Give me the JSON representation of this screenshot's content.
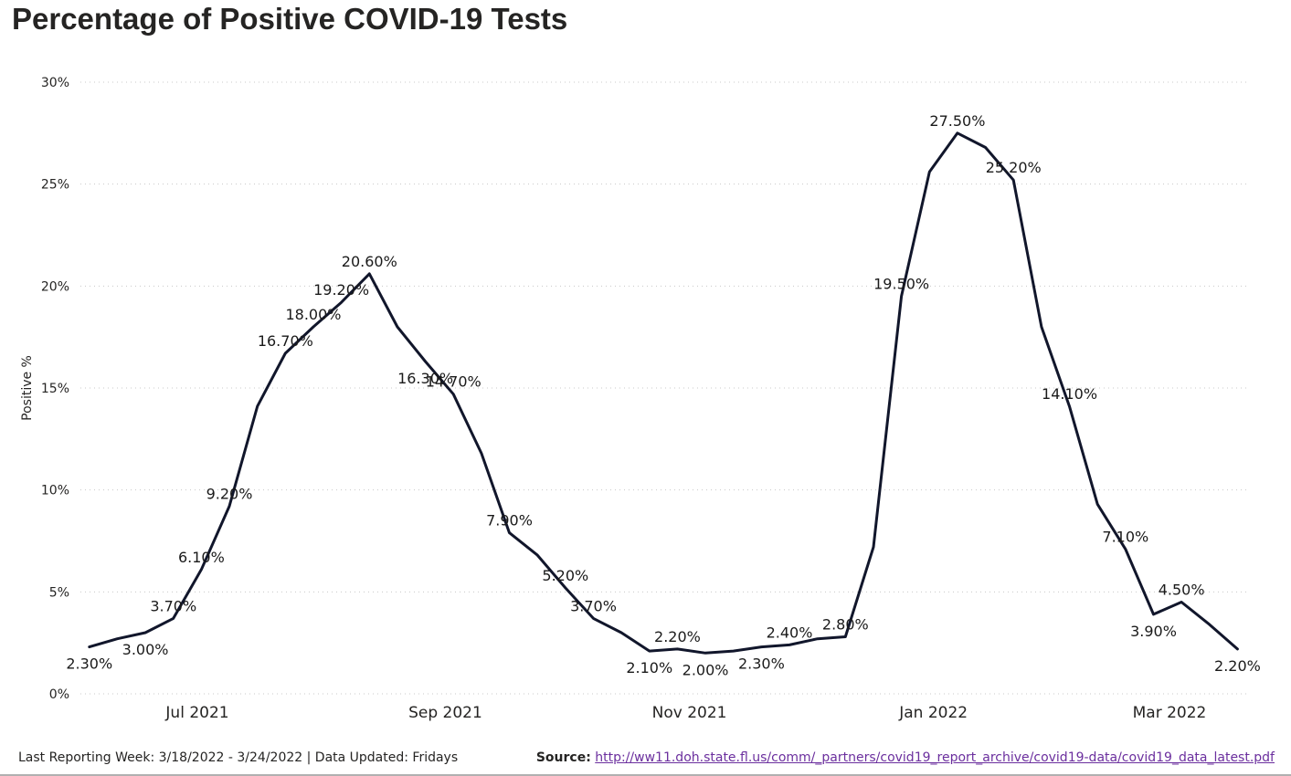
{
  "title": "Percentage of Positive COVID-19 Tests",
  "footer": {
    "reporting": "Last Reporting Week: 3/18/2022 - 3/24/2022 | Data Updated: Fridays",
    "source_label": "Source:",
    "source_url": "http://ww11.doh.state.fl.us/comm/_partners/covid19_report_archive/covid19-data/covid19_data_latest.pdf"
  },
  "colors": {
    "line": "#11162b",
    "grid": "#c8c8c8",
    "text": "#252423",
    "link": "#6b2f9e"
  },
  "chart_data": {
    "type": "line",
    "title": "Percentage of Positive COVID-19 Tests",
    "ylabel": "Positive %",
    "xlabel": "",
    "ylim": [
      0,
      30
    ],
    "yticks": [
      0,
      5,
      10,
      15,
      20,
      25,
      30
    ],
    "ytick_labels": [
      "0%",
      "5%",
      "10%",
      "15%",
      "20%",
      "25%",
      "30%"
    ],
    "grid": "horizontal dotted",
    "x_tick_labels": [
      {
        "label": "Jul 2021",
        "date": "2021-07-01"
      },
      {
        "label": "Sep 2021",
        "date": "2021-09-01"
      },
      {
        "label": "Nov 2021",
        "date": "2021-11-01"
      },
      {
        "label": "Jan 2022",
        "date": "2022-01-01"
      },
      {
        "label": "Mar 2022",
        "date": "2022-03-01"
      }
    ],
    "x_range": [
      "2021-06-04",
      "2022-03-31"
    ],
    "series": [
      {
        "points": [
          {
            "date": "2021-06-04",
            "value": 2.3,
            "label": "2.30%",
            "label_pos": "below"
          },
          {
            "date": "2021-06-11",
            "value": 2.7
          },
          {
            "date": "2021-06-18",
            "value": 3.0,
            "label": "3.00%",
            "label_pos": "below"
          },
          {
            "date": "2021-06-25",
            "value": 3.7,
            "label": "3.70%",
            "label_pos": "above"
          },
          {
            "date": "2021-07-02",
            "value": 6.1,
            "label": "6.10%",
            "label_pos": "above"
          },
          {
            "date": "2021-07-09",
            "value": 9.2,
            "label": "9.20%",
            "label_pos": "above"
          },
          {
            "date": "2021-07-16",
            "value": 14.1
          },
          {
            "date": "2021-07-23",
            "value": 16.7,
            "label": "16.70%",
            "label_pos": "above"
          },
          {
            "date": "2021-07-30",
            "value": 18.0,
            "label": "18.00%",
            "label_pos": "above"
          },
          {
            "date": "2021-08-06",
            "value": 19.2,
            "label": "19.20%",
            "label_pos": "above"
          },
          {
            "date": "2021-08-13",
            "value": 20.6,
            "label": "20.60%",
            "label_pos": "above"
          },
          {
            "date": "2021-08-20",
            "value": 18.0
          },
          {
            "date": "2021-08-27",
            "value": 16.3,
            "label": "16.30%",
            "label_pos": "below"
          },
          {
            "date": "2021-09-03",
            "value": 14.7,
            "label": "14.70%",
            "label_pos": "above"
          },
          {
            "date": "2021-09-10",
            "value": 11.8
          },
          {
            "date": "2021-09-17",
            "value": 7.9,
            "label": "7.90%",
            "label_pos": "above"
          },
          {
            "date": "2021-09-24",
            "value": 6.8
          },
          {
            "date": "2021-10-01",
            "value": 5.2,
            "label": "5.20%",
            "label_pos": "above"
          },
          {
            "date": "2021-10-08",
            "value": 3.7,
            "label": "3.70%",
            "label_pos": "above"
          },
          {
            "date": "2021-10-15",
            "value": 3.0
          },
          {
            "date": "2021-10-22",
            "value": 2.1,
            "label": "2.10%",
            "label_pos": "below"
          },
          {
            "date": "2021-10-29",
            "value": 2.2,
            "label": "2.20%",
            "label_pos": "above"
          },
          {
            "date": "2021-11-05",
            "value": 2.0,
            "label": "2.00%",
            "label_pos": "below"
          },
          {
            "date": "2021-11-12",
            "value": 2.1
          },
          {
            "date": "2021-11-19",
            "value": 2.3,
            "label": "2.30%",
            "label_pos": "below"
          },
          {
            "date": "2021-11-26",
            "value": 2.4,
            "label": "2.40%",
            "label_pos": "above"
          },
          {
            "date": "2021-12-03",
            "value": 2.7
          },
          {
            "date": "2021-12-10",
            "value": 2.8,
            "label": "2.80%",
            "label_pos": "above"
          },
          {
            "date": "2021-12-17",
            "value": 7.2
          },
          {
            "date": "2021-12-24",
            "value": 19.5,
            "label": "19.50%",
            "label_pos": "above"
          },
          {
            "date": "2021-12-31",
            "value": 25.6
          },
          {
            "date": "2022-01-07",
            "value": 27.5,
            "label": "27.50%",
            "label_pos": "above"
          },
          {
            "date": "2022-01-14",
            "value": 26.8
          },
          {
            "date": "2022-01-21",
            "value": 25.2,
            "label": "25.20%",
            "label_pos": "above"
          },
          {
            "date": "2022-01-28",
            "value": 18.0
          },
          {
            "date": "2022-02-04",
            "value": 14.1,
            "label": "14.10%",
            "label_pos": "above"
          },
          {
            "date": "2022-02-11",
            "value": 9.3
          },
          {
            "date": "2022-02-18",
            "value": 7.1,
            "label": "7.10%",
            "label_pos": "above"
          },
          {
            "date": "2022-02-25",
            "value": 3.9,
            "label": "3.90%",
            "label_pos": "below"
          },
          {
            "date": "2022-03-04",
            "value": 4.5,
            "label": "4.50%",
            "label_pos": "above"
          },
          {
            "date": "2022-03-11",
            "value": 3.4
          },
          {
            "date": "2022-03-18",
            "value": 2.2,
            "label": "2.20%",
            "label_pos": "below"
          }
        ]
      }
    ]
  }
}
